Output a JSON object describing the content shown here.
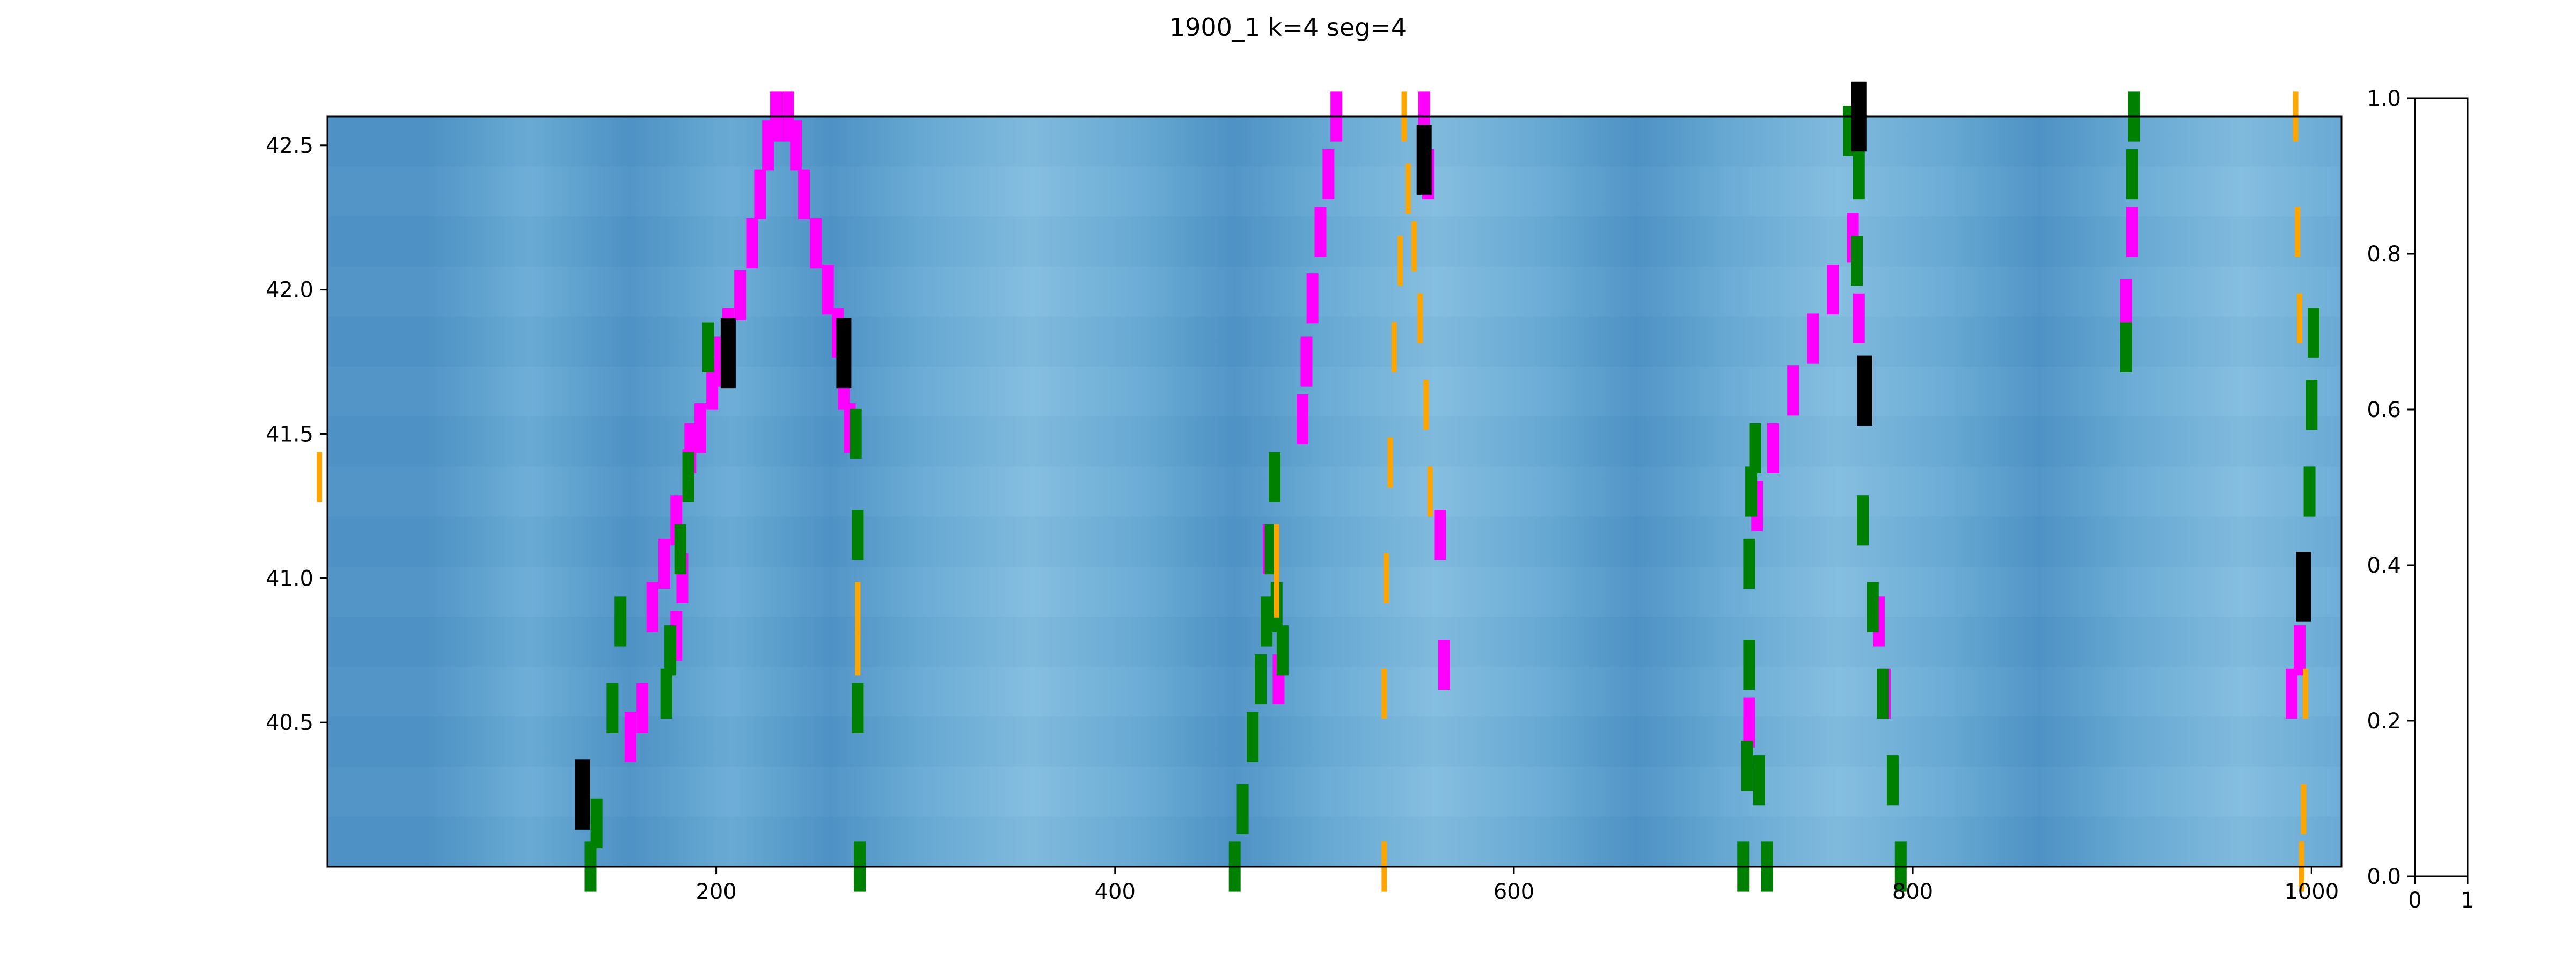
{
  "chart_data": [
    {
      "type": "heatmap",
      "title": "1900_1 k=4   seg=4",
      "xlim": [
        5,
        1015
      ],
      "ylim": [
        40.0,
        42.6
      ],
      "xticks": [
        200,
        400,
        600,
        800,
        1000
      ],
      "yticks": [
        40.5,
        41.0,
        41.5,
        42.0,
        42.5
      ],
      "xtick_labels": [
        "200",
        "400",
        "600",
        "800",
        "1000"
      ],
      "ytick_labels": [
        "40.5",
        "41.0",
        "41.5",
        "42.0",
        "42.5"
      ],
      "background_colors": [
        "#4f93c6",
        "#6badd6",
        "#82bde0"
      ],
      "grid": false,
      "series": [
        {
          "color": "#ff00ff",
          "points": [
            [
              230,
              42.6
            ],
            [
              226,
              42.5
            ],
            [
              222,
              42.33
            ],
            [
              218,
              42.16
            ],
            [
              212,
              41.98
            ],
            [
              206,
              41.85
            ],
            [
              202,
              41.75
            ],
            [
              198,
              41.67
            ],
            [
              192,
              41.52
            ],
            [
              186,
              41.36
            ],
            [
              180,
              41.2
            ],
            [
              174,
              41.05
            ],
            [
              168,
              40.9
            ],
            [
              163,
              40.55
            ],
            [
              157,
              40.45
            ]
          ]
        },
        {
          "color": "#ff00ff",
          "points": [
            [
              236,
              42.6
            ],
            [
              240,
              42.5
            ],
            [
              244,
              42.33
            ],
            [
              250,
              42.16
            ],
            [
              256,
              42.0
            ],
            [
              261,
              41.85
            ],
            [
              264,
              41.67
            ],
            [
              267,
              41.52
            ]
          ]
        },
        {
          "color": "#ff00ff",
          "points": [
            [
              187,
              41.45
            ],
            [
              183,
              41.0
            ],
            [
              180,
              40.8
            ]
          ]
        },
        {
          "color": "#ff00ff",
          "points": [
            [
              511,
              42.6
            ],
            [
              507,
              42.4
            ],
            [
              503,
              42.2
            ],
            [
              499,
              41.97
            ],
            [
              496,
              41.75
            ],
            [
              494,
              41.55
            ],
            [
              477,
              41.1
            ],
            [
              482,
              40.65
            ]
          ]
        },
        {
          "color": "#ff00ff",
          "points": [
            [
              555,
              42.6
            ],
            [
              557,
              42.4
            ],
            [
              563,
              41.15
            ],
            [
              565,
              40.7
            ]
          ]
        },
        {
          "color": "#ff00ff",
          "points": [
            [
              770,
              42.18
            ],
            [
              760,
              42.0
            ],
            [
              750,
              41.83
            ],
            [
              740,
              41.65
            ],
            [
              730,
              41.45
            ],
            [
              722,
              41.25
            ],
            [
              718,
              40.5
            ]
          ]
        },
        {
          "color": "#ff00ff",
          "points": [
            [
              773,
              41.9
            ],
            [
              783,
              40.85
            ],
            [
              786,
              40.6
            ]
          ]
        },
        {
          "color": "#ff00ff",
          "points": [
            [
              910,
              42.2
            ],
            [
              907,
              41.95
            ],
            [
              994,
              40.75
            ],
            [
              990,
              40.6
            ]
          ]
        },
        {
          "color": "#008000",
          "points": [
            [
              137,
              40.0
            ],
            [
              140,
              40.15
            ],
            [
              148,
              40.55
            ],
            [
              152,
              40.85
            ]
          ]
        },
        {
          "color": "#008000",
          "points": [
            [
              175,
              40.6
            ],
            [
              177,
              40.75
            ],
            [
              182,
              41.1
            ],
            [
              186,
              41.35
            ],
            [
              196,
              41.8
            ]
          ]
        },
        {
          "color": "#008000",
          "points": [
            [
              272,
              40.0
            ],
            [
              271,
              40.55
            ],
            [
              271,
              41.15
            ],
            [
              270,
              41.5
            ]
          ]
        },
        {
          "color": "#008000",
          "points": [
            [
              460,
              40.0
            ],
            [
              464,
              40.2
            ],
            [
              469,
              40.45
            ],
            [
              473,
              40.65
            ],
            [
              476,
              40.85
            ],
            [
              478,
              41.1
            ],
            [
              480,
              41.35
            ]
          ]
        },
        {
          "color": "#008000",
          "points": [
            [
              484,
              40.75
            ],
            [
              481,
              40.9
            ]
          ]
        },
        {
          "color": "#008000",
          "points": [
            [
              715,
              40.0
            ],
            [
              717,
              40.35
            ],
            [
              718,
              40.7
            ],
            [
              718,
              41.05
            ],
            [
              719,
              41.3
            ],
            [
              721,
              41.45
            ]
          ]
        },
        {
          "color": "#008000",
          "points": [
            [
              727,
              40.0
            ],
            [
              723,
              40.3
            ]
          ]
        },
        {
          "color": "#008000",
          "points": [
            [
              794,
              40.0
            ],
            [
              790,
              40.3
            ],
            [
              785,
              40.6
            ],
            [
              780,
              40.9
            ],
            [
              775,
              41.2
            ]
          ]
        },
        {
          "color": "#008000",
          "points": [
            [
              773,
              42.4
            ],
            [
              772,
              42.1
            ],
            [
              768,
              42.55
            ]
          ]
        },
        {
          "color": "#008000",
          "points": [
            [
              911,
              42.6
            ],
            [
              910,
              42.4
            ],
            [
              907,
              41.8
            ]
          ]
        },
        {
          "color": "#008000",
          "points": [
            [
              996,
              41.0
            ],
            [
              999,
              41.3
            ],
            [
              1000,
              41.6
            ],
            [
              1001,
              41.85
            ]
          ]
        },
        {
          "color": "#ffa500",
          "points": [
            [
              545,
              42.6
            ],
            [
              547,
              42.35
            ],
            [
              543,
              42.1
            ],
            [
              540,
              41.8
            ],
            [
              538,
              41.4
            ],
            [
              536,
              41.0
            ],
            [
              535,
              40.6
            ],
            [
              535,
              40.0
            ]
          ]
        },
        {
          "color": "#ffa500",
          "points": [
            [
              547,
              42.35
            ],
            [
              550,
              42.15
            ],
            [
              553,
              41.9
            ],
            [
              556,
              41.6
            ],
            [
              558,
              41.3
            ]
          ]
        },
        {
          "color": "#ffa500",
          "points": [
            [
              992,
              42.6
            ],
            [
              993,
              42.2
            ],
            [
              994,
              41.9
            ]
          ]
        },
        {
          "color": "#ffa500",
          "points": [
            [
              997,
              40.6
            ],
            [
              996,
              40.2
            ],
            [
              995,
              40.0
            ]
          ]
        },
        {
          "color": "#ffa500",
          "points": [
            [
              271,
              40.75
            ],
            [
              271,
              40.9
            ]
          ]
        },
        {
          "color": "#ffa500",
          "points": [
            [
              481,
              40.95
            ],
            [
              481,
              41.1
            ]
          ]
        },
        {
          "color": "#ffa500",
          "points": [
            [
              1,
              41.35
            ]
          ]
        }
      ],
      "black_markers": [
        [
          133,
          40.25
        ],
        [
          206,
          41.78
        ],
        [
          264,
          41.78
        ],
        [
          555,
          42.45
        ],
        [
          773,
          42.6
        ],
        [
          776,
          41.65
        ],
        [
          996,
          40.97
        ]
      ]
    },
    {
      "type": "colorbar",
      "ylim": [
        0.0,
        1.0
      ],
      "yticks": [
        0.0,
        0.2,
        0.4,
        0.6,
        0.8,
        1.0
      ],
      "ytick_labels": [
        "0.0",
        "0.2",
        "0.4",
        "0.6",
        "0.8",
        "1.0"
      ],
      "xtick_labels": [
        "0",
        "1"
      ]
    }
  ]
}
